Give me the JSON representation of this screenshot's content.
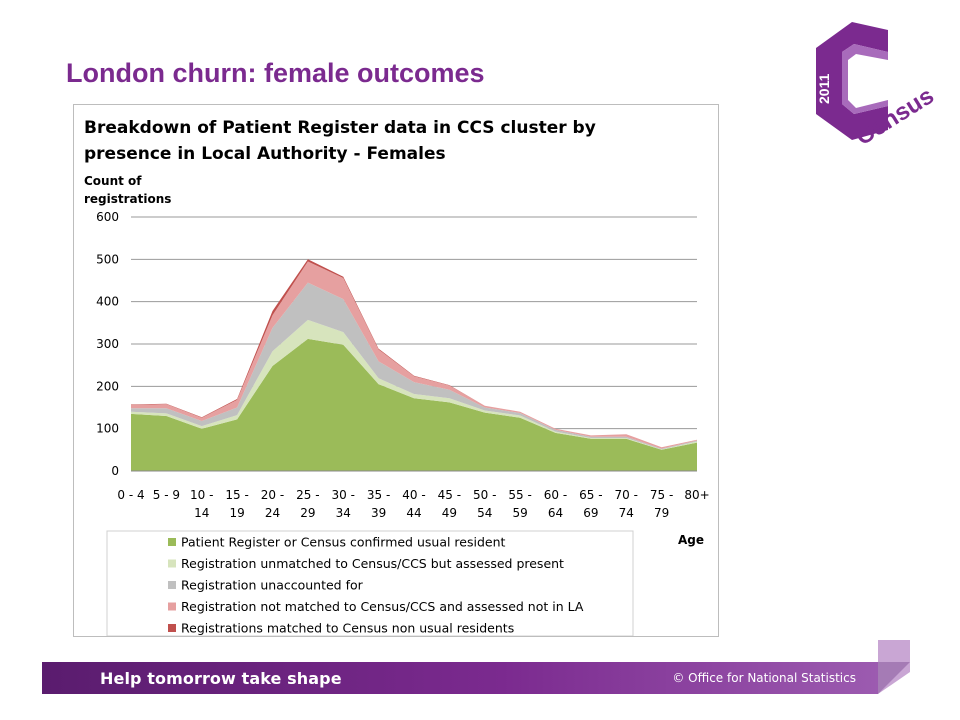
{
  "slide": {
    "title": "London churn: female outcomes",
    "footer_tagline": "Help tomorrow take shape",
    "footer_copyright": "© Office for National Statistics"
  },
  "logo": {
    "year": "2011",
    "word": "Census",
    "color": "#7b2a8f"
  },
  "chart_data": {
    "type": "area",
    "stacked": true,
    "title_lines": [
      "Breakdown of Patient Register data in CCS cluster by",
      "presence in Local Authority - Females"
    ],
    "ylabel_lines": [
      "Count of",
      "registrations"
    ],
    "xlabel": "Age",
    "ylim": [
      0,
      600
    ],
    "yticks": [
      0,
      100,
      200,
      300,
      400,
      500,
      600
    ],
    "grid": true,
    "legend_position": "bottom",
    "categories": [
      [
        "0 - 4"
      ],
      [
        "5 - 9"
      ],
      [
        "10 -",
        "14"
      ],
      [
        "15 -",
        "19"
      ],
      [
        "20 -",
        "24"
      ],
      [
        "25 -",
        "29"
      ],
      [
        "30 -",
        "34"
      ],
      [
        "35 -",
        "39"
      ],
      [
        "40 -",
        "44"
      ],
      [
        "45 -",
        "49"
      ],
      [
        "50 -",
        "54"
      ],
      [
        "55 -",
        "59"
      ],
      [
        "60 -",
        "64"
      ],
      [
        "65 -",
        "69"
      ],
      [
        "70 -",
        "74"
      ],
      [
        "75 -",
        "79"
      ],
      [
        "80+"
      ]
    ],
    "series": [
      {
        "name": "Patient Register or Census confirmed usual resident",
        "color": "#9bbb59",
        "values": [
          135,
          130,
          100,
          122,
          248,
          312,
          298,
          205,
          172,
          162,
          138,
          126,
          90,
          76,
          76,
          50,
          67
        ]
      },
      {
        "name": "Registration unmatched to Census/CCS but assessed present",
        "color": "#d7e4bd",
        "values": [
          5,
          6,
          6,
          10,
          35,
          45,
          30,
          14,
          10,
          10,
          5,
          5,
          3,
          2,
          2,
          1,
          3
        ]
      },
      {
        "name": "Registration unaccounted for",
        "color": "#c0c0c0",
        "values": [
          8,
          12,
          12,
          18,
          55,
          88,
          78,
          40,
          28,
          20,
          7,
          6,
          4,
          3,
          3,
          2,
          2
        ]
      },
      {
        "name": "Registration not matched to Census/CCS and assessed not in LA",
        "color": "#e6a0a0",
        "values": [
          8,
          10,
          8,
          18,
          30,
          50,
          50,
          28,
          14,
          10,
          4,
          3,
          3,
          3,
          6,
          3,
          2
        ]
      },
      {
        "name": "Registrations matched to Census non usual residents",
        "color": "#c0504d",
        "values": [
          1,
          1,
          1,
          2,
          10,
          5,
          3,
          2,
          1,
          1,
          0,
          0,
          0,
          0,
          0,
          0,
          0
        ]
      }
    ]
  }
}
